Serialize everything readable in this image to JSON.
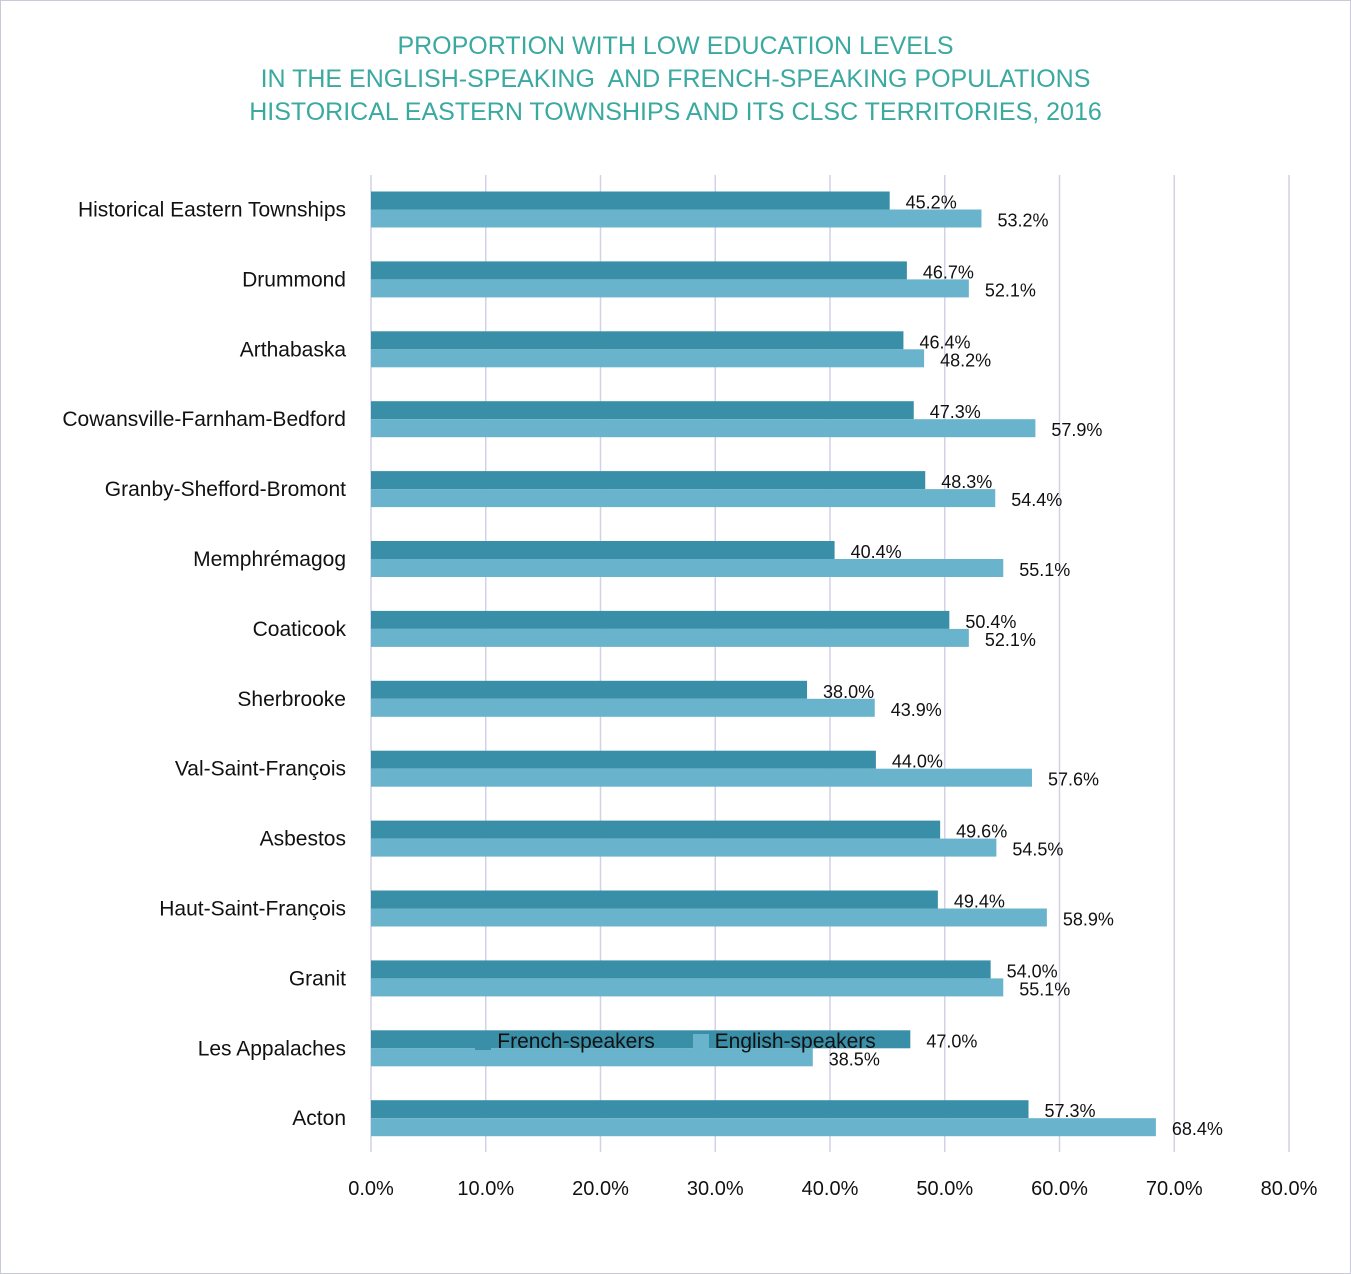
{
  "chart_data": {
    "type": "bar",
    "orientation": "horizontal",
    "title_lines": [
      "PROPORTION WITH LOW EDUCATION LEVELS",
      "IN THE ENGLISH-SPEAKING  AND FRENCH-SPEAKING POPULATIONS",
      "HISTORICAL EASTERN TOWNSHIPS AND ITS CLSC TERRITORIES, 2016"
    ],
    "categories": [
      "Historical Eastern Townships",
      "Drummond",
      "Arthabaska",
      "Cowansville-Farnham-Bedford",
      "Granby-Shefford-Bromont",
      "Memphrémagog",
      "Coaticook",
      "Sherbrooke",
      "Val-Saint-François",
      "Asbestos",
      "Haut-Saint-François",
      "Granit",
      "Les Appalaches",
      "Acton"
    ],
    "series": [
      {
        "name": "French-speakers",
        "color": "#3a8fa8",
        "values": [
          45.2,
          46.7,
          46.4,
          47.3,
          48.3,
          40.4,
          50.4,
          38.0,
          44.0,
          49.6,
          49.4,
          54.0,
          47.0,
          57.3
        ],
        "labels": [
          "45.2%",
          "46.7%",
          "46.4%",
          "47.3%",
          "48.3%",
          "40.4%",
          "50.4%",
          "38.0%",
          "44.0%",
          "49.6%",
          "49.4%",
          "54.0%",
          "47.0%",
          "57.3%"
        ]
      },
      {
        "name": "English-speakers",
        "color": "#69b4cc",
        "values": [
          53.2,
          52.1,
          48.2,
          57.9,
          54.4,
          55.1,
          52.1,
          43.9,
          57.6,
          54.5,
          58.9,
          55.1,
          38.5,
          68.4
        ],
        "labels": [
          "53.2%",
          "52.1%",
          "48.2%",
          "57.9%",
          "54.4%",
          "55.1%",
          "52.1%",
          "43.9%",
          "57.6%",
          "54.5%",
          "58.9%",
          "55.1%",
          "38.5%",
          "68.4%"
        ]
      }
    ],
    "xlim": [
      0,
      80
    ],
    "x_ticks": [
      0,
      10,
      20,
      30,
      40,
      50,
      60,
      70,
      80
    ],
    "x_tick_labels": [
      "0.0%",
      "10.0%",
      "20.0%",
      "30.0%",
      "40.0%",
      "50.0%",
      "60.0%",
      "70.0%",
      "80.0%"
    ],
    "grid": "vertical",
    "grid_color": "#d4d0e6",
    "title_color": "#3aa9a0",
    "legend_position": "bottom"
  }
}
